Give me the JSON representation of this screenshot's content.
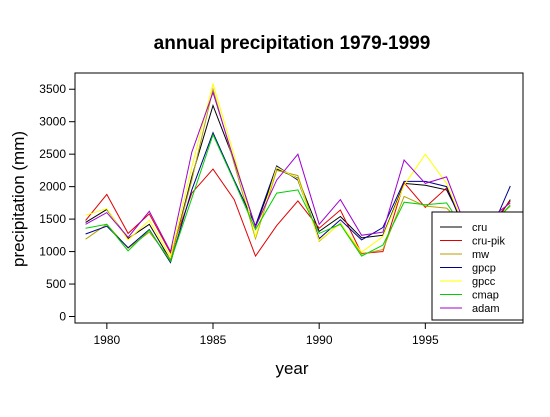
{
  "chart_data": {
    "type": "line",
    "title": "annual precipitation 1979-1999",
    "xlabel": "year",
    "ylabel": "precipitation (mm)",
    "xlim": [
      1978.5,
      1999.6
    ],
    "ylim": [
      -100,
      3750
    ],
    "x_ticks": [
      1980,
      1985,
      1990,
      1995
    ],
    "y_ticks": [
      0,
      500,
      1000,
      1500,
      2000,
      2500,
      3000,
      3500
    ],
    "grid": false,
    "legend_position": "bottom-right",
    "x": [
      1979,
      1980,
      1981,
      1982,
      1983,
      1984,
      1985,
      1986,
      1987,
      1988,
      1989,
      1990,
      1991,
      1992,
      1993,
      1994,
      1995,
      1996,
      1997,
      1998,
      1999
    ],
    "series": [
      {
        "name": "cru",
        "color": "#000000",
        "values": [
          1450,
          1650,
          1200,
          1420,
          870,
          2150,
          3250,
          2400,
          1380,
          2270,
          2130,
          1310,
          1540,
          1210,
          1250,
          2050,
          2020,
          1950,
          1300,
          1300,
          1800
        ]
      },
      {
        "name": "cru-pik",
        "color": "#e00000",
        "values": [
          1480,
          1880,
          1280,
          1580,
          980,
          1900,
          2270,
          1800,
          930,
          1400,
          1780,
          1360,
          1640,
          970,
          1000,
          2060,
          1680,
          1980,
          1300,
          1380,
          1780
        ]
      },
      {
        "name": "mw",
        "color": "#b8a000",
        "values": [
          1190,
          1420,
          1050,
          1300,
          880,
          2100,
          3500,
          2350,
          1200,
          2250,
          2170,
          1160,
          1440,
          960,
          1030,
          1850,
          1700,
          1670,
          1350,
          1400,
          1700
        ]
      },
      {
        "name": "gpcp",
        "color": "#000090",
        "values": [
          1270,
          1390,
          1060,
          1340,
          830,
          1950,
          2830,
          2100,
          1400,
          2320,
          2100,
          1200,
          1490,
          1180,
          1370,
          2080,
          2080,
          2000,
          1200,
          1250,
          2010
        ]
      },
      {
        "name": "gpcc",
        "color": "#ffff00",
        "values": [
          1560,
          1660,
          1180,
          1480,
          920,
          2300,
          3580,
          2480,
          1230,
          2300,
          2120,
          1170,
          1430,
          990,
          1230,
          2020,
          2500,
          2050,
          1250,
          1280,
          1600
        ]
      },
      {
        "name": "cmap",
        "color": "#00d000",
        "values": [
          1360,
          1420,
          1010,
          1330,
          850,
          1820,
          2800,
          2080,
          1340,
          1900,
          1950,
          1280,
          1420,
          930,
          1100,
          1760,
          1720,
          1750,
          1250,
          1350,
          1720
        ]
      },
      {
        "name": "adam",
        "color": "#a000d0",
        "values": [
          1420,
          1600,
          1220,
          1620,
          1000,
          2530,
          3450,
          2400,
          1380,
          2100,
          2500,
          1420,
          1800,
          1250,
          1300,
          2410,
          2050,
          2150,
          1300,
          1500,
          1750
        ]
      }
    ]
  }
}
